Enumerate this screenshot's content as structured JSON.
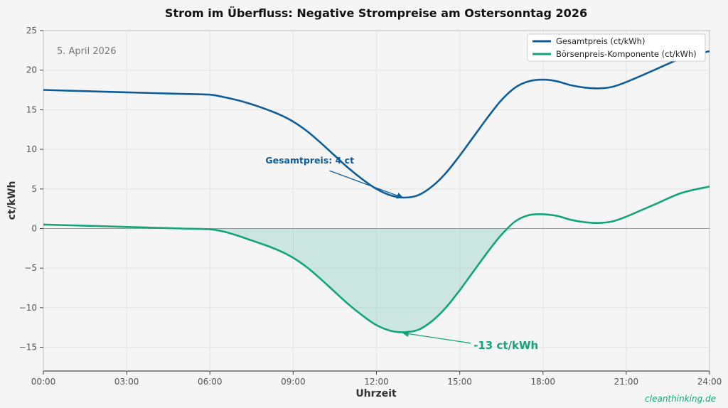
{
  "chart_data": {
    "type": "line",
    "title": "Strom im Überfluss: Negative Strompreise am Ostersonntag 2026",
    "subtitle": "5. April 2026",
    "xlabel": "Uhrzeit",
    "ylabel": "ct/kWh",
    "xlim": [
      0,
      24
    ],
    "ylim": [
      -18,
      25
    ],
    "x_ticks": [
      0,
      3,
      6,
      9,
      12,
      15,
      18,
      21,
      24
    ],
    "x_tick_labels": [
      "00:00",
      "03:00",
      "06:00",
      "09:00",
      "12:00",
      "15:00",
      "18:00",
      "21:00",
      "24:00"
    ],
    "y_ticks": [
      -15,
      -10,
      -5,
      0,
      5,
      10,
      15,
      20,
      25
    ],
    "y_tick_labels": [
      "−15",
      "−10",
      "−5",
      "0",
      "5",
      "10",
      "15",
      "20",
      "25"
    ],
    "grid": true,
    "legend_position": "top-right",
    "series": [
      {
        "name": "Gesamtpreis (ct/kWh)",
        "color": "#0e5d9a",
        "x": [
          0,
          1,
          2,
          3,
          4,
          5,
          6,
          6.5,
          7,
          7.5,
          8,
          8.5,
          9,
          9.5,
          10,
          10.5,
          11,
          11.5,
          12,
          12.5,
          13,
          13.5,
          14,
          14.5,
          15,
          15.5,
          16,
          16.5,
          17,
          17.5,
          18,
          18.5,
          19,
          19.5,
          20,
          20.5,
          21,
          22,
          23,
          24
        ],
        "y": [
          17.5,
          17.4,
          17.3,
          17.2,
          17.1,
          17.0,
          16.9,
          16.6,
          16.2,
          15.7,
          15.1,
          14.4,
          13.5,
          12.3,
          10.8,
          9.2,
          7.6,
          6.2,
          5.0,
          4.2,
          3.9,
          4.2,
          5.3,
          7.0,
          9.2,
          11.6,
          14.0,
          16.2,
          17.8,
          18.6,
          18.8,
          18.6,
          18.1,
          17.8,
          17.7,
          17.9,
          18.5,
          20.0,
          21.5,
          22.4
        ]
      },
      {
        "name": "Börsenpreis-Komponente (ct/kWh)",
        "color": "#13a57a",
        "x": [
          0,
          1,
          2,
          3,
          4,
          5,
          6,
          6.5,
          7,
          7.5,
          8,
          8.5,
          9,
          9.5,
          10,
          10.5,
          11,
          11.5,
          12,
          12.5,
          13,
          13.5,
          14,
          14.5,
          15,
          15.5,
          16,
          16.5,
          17,
          17.5,
          18,
          18.5,
          19,
          19.5,
          20,
          20.5,
          21,
          22,
          23,
          24
        ],
        "y": [
          0.5,
          0.4,
          0.3,
          0.2,
          0.1,
          0.0,
          -0.1,
          -0.4,
          -0.9,
          -1.5,
          -2.1,
          -2.8,
          -3.7,
          -4.9,
          -6.4,
          -8.0,
          -9.6,
          -11.0,
          -12.2,
          -12.9,
          -13.1,
          -12.8,
          -11.7,
          -10.0,
          -7.8,
          -5.4,
          -3.0,
          -0.8,
          0.9,
          1.7,
          1.8,
          1.6,
          1.1,
          0.8,
          0.7,
          0.9,
          1.5,
          3.0,
          4.5,
          5.3
        ]
      }
    ],
    "annotations": [
      {
        "text": "Gesamtpreis: 4 ct",
        "x": 13,
        "y": 3.9,
        "text_x": 8,
        "text_y": 8.2,
        "color": "#0e5d9a"
      },
      {
        "text": "-13 ct/kWh",
        "x": 13,
        "y": -13.1,
        "text_x": 15.5,
        "text_y": -15.2,
        "color": "#13a57a"
      }
    ],
    "watermark": "cleanthinking.de"
  }
}
